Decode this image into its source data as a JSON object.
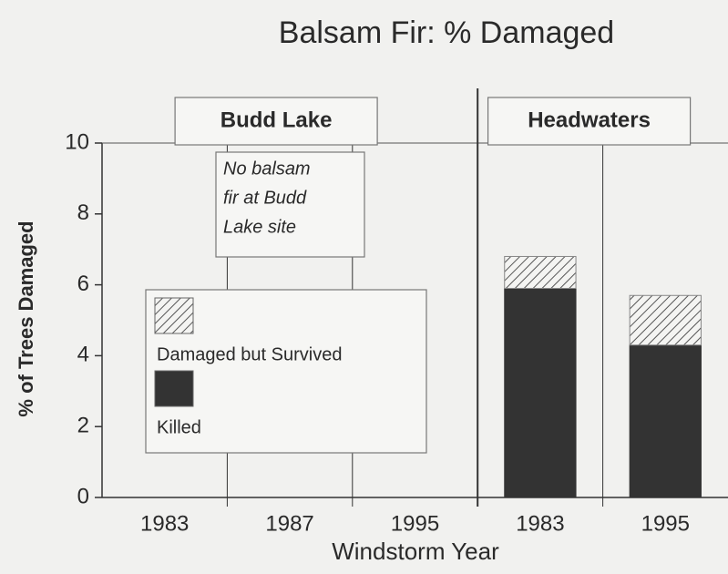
{
  "chart_data": {
    "type": "bar",
    "stacked": true,
    "title": "Balsam Fir: % Damaged",
    "xlabel": "Windstorm Year",
    "ylabel": "% of Trees Damaged",
    "panels": [
      {
        "name": "Budd Lake",
        "categories": [
          "1983",
          "1987",
          "1995"
        ]
      },
      {
        "name": "Headwaters",
        "categories": [
          "1983",
          "1995"
        ]
      }
    ],
    "series": [
      {
        "name": "Killed",
        "color": "#333333",
        "hatch": false,
        "values": [
          null,
          null,
          null,
          5.9,
          4.3
        ]
      },
      {
        "name": "Damaged but Survived",
        "color": "#555555",
        "hatch": true,
        "values": [
          null,
          null,
          null,
          0.9,
          1.4
        ]
      }
    ],
    "annotation": [
      "No balsam",
      "fir at Budd",
      "Lake site"
    ],
    "ylim": [
      0,
      10
    ],
    "yticks": [
      0,
      2,
      4,
      6,
      8,
      10
    ],
    "grid": false
  }
}
